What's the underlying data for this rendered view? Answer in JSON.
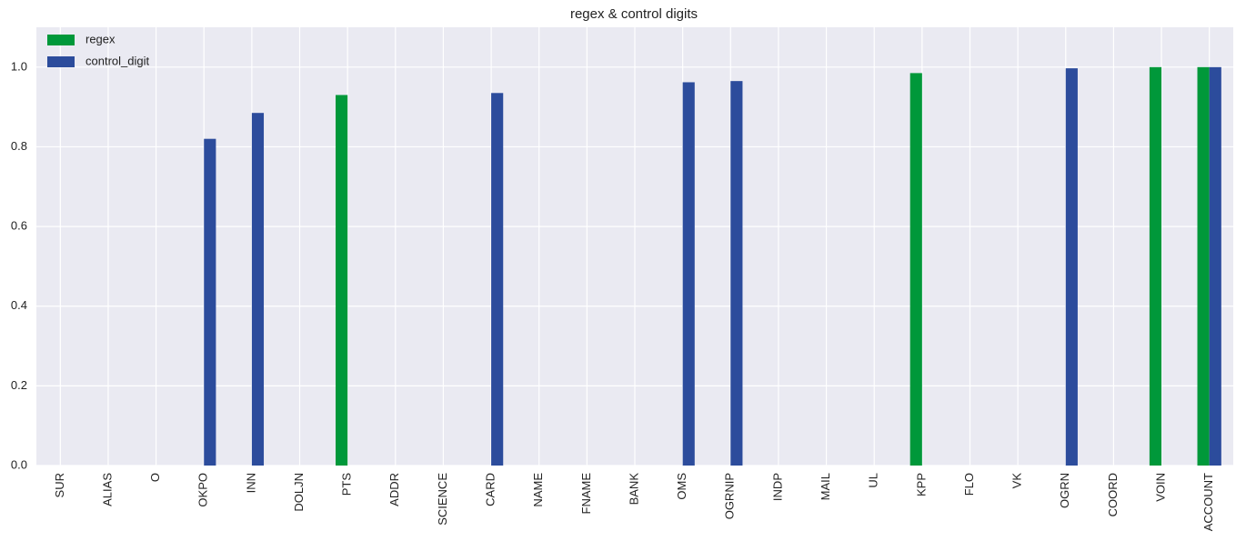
{
  "chart_data": {
    "type": "bar",
    "title": "regex & control digits",
    "categories": [
      "SUR",
      "ALIAS",
      "O",
      "OKPO",
      "INN",
      "DOLJN",
      "PTS",
      "ADDR",
      "SCIENCE",
      "CARD",
      "NAME",
      "FNAME",
      "BANK",
      "OMS",
      "OGRNIP",
      "INDP",
      "MAIL",
      "UL",
      "KPP",
      "FLO",
      "VK",
      "OGRN",
      "COORD",
      "VOIN",
      "ACCOUNT"
    ],
    "series": [
      {
        "name": "regex",
        "color": "#00983a",
        "values": [
          null,
          null,
          null,
          null,
          null,
          null,
          0.93,
          null,
          null,
          null,
          null,
          null,
          null,
          null,
          null,
          null,
          null,
          null,
          0.985,
          null,
          null,
          null,
          null,
          1.0,
          1.0
        ]
      },
      {
        "name": "control_digit",
        "color": "#2c4c9c",
        "values": [
          null,
          null,
          null,
          0.82,
          0.885,
          null,
          null,
          null,
          null,
          0.935,
          null,
          null,
          null,
          0.962,
          0.965,
          null,
          null,
          null,
          null,
          null,
          null,
          0.997,
          null,
          null,
          1.0
        ]
      }
    ],
    "ylim": [
      0,
      1.1
    ],
    "yticks": [
      {
        "value": 0,
        "label": "0.0"
      },
      0.2,
      0.4,
      0.6,
      0.8,
      {
        "value": 1,
        "label": "1.0"
      }
    ],
    "grid": true,
    "legend": "upper left"
  }
}
